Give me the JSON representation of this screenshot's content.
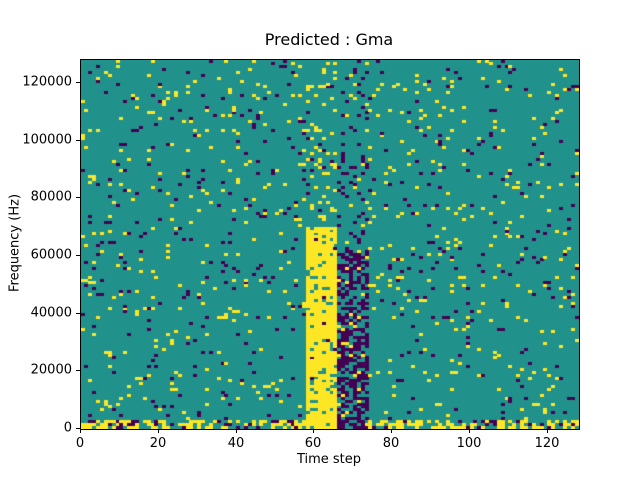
{
  "figure": {
    "background": "#ffffff"
  },
  "chart_data": {
    "type": "heatmap",
    "title": "Predicted : Gma",
    "xlabel": "Time step",
    "ylabel": "Frequency (Hz)",
    "xlim": [
      0,
      128
    ],
    "ylim": [
      0,
      128000
    ],
    "x_ticks": [
      "0",
      "20",
      "40",
      "60",
      "80",
      "100",
      "120"
    ],
    "x_tick_values": [
      0,
      20,
      40,
      60,
      80,
      100,
      120
    ],
    "y_ticks": [
      "0",
      "20000",
      "40000",
      "60000",
      "80000",
      "100000",
      "120000"
    ],
    "y_tick_values": [
      0,
      20000,
      40000,
      60000,
      80000,
      100000,
      120000
    ],
    "grid_cols": 128,
    "grid_rows": 128,
    "row_height_hz": 1000,
    "legend": "none",
    "colormap": {
      "name": "viridis-3-level",
      "background_teal": "#21918c",
      "low_purple": "#440154",
      "high_yellow": "#fde725"
    },
    "notable_features": [
      "Mostly teal background with sparse scattered yellow and dark-purple single cells across the whole grid",
      "Strong near-solid vertical yellow band at time steps ~58-66 from 0 Hz up to ~70000 Hz",
      "Dense dark-purple vertical cluster at time steps ~66-74 from 0 Hz up to ~60000 Hz, with sparser purple continuing to ~122000 Hz",
      "Dense mixed yellow/purple activity along the bottom rows (0-3000 Hz) across all time steps"
    ],
    "pattern": {
      "seed": 1337,
      "base_yellow_prob": 0.035,
      "base_purple_prob": 0.028,
      "regions": [
        {
          "name": "bottom-rows",
          "x": [
            0,
            128
          ],
          "y": [
            0,
            3
          ],
          "yellow_prob": 0.45,
          "purple_prob": 0.14
        },
        {
          "name": "yellow-band",
          "x": [
            58,
            66
          ],
          "y": [
            0,
            70
          ],
          "yellow_prob": 0.85,
          "purple_prob": 0.02
        },
        {
          "name": "yellow-band-upper",
          "x": [
            58,
            66
          ],
          "y": [
            70,
            128
          ],
          "yellow_prob": 0.12,
          "purple_prob": 0.03
        },
        {
          "name": "purple-cluster",
          "x": [
            66,
            74
          ],
          "y": [
            0,
            62
          ],
          "yellow_prob": 0.05,
          "purple_prob": 0.55
        },
        {
          "name": "purple-cluster-upper",
          "x": [
            66,
            74
          ],
          "y": [
            62,
            122
          ],
          "yellow_prob": 0.03,
          "purple_prob": 0.12
        }
      ]
    }
  }
}
